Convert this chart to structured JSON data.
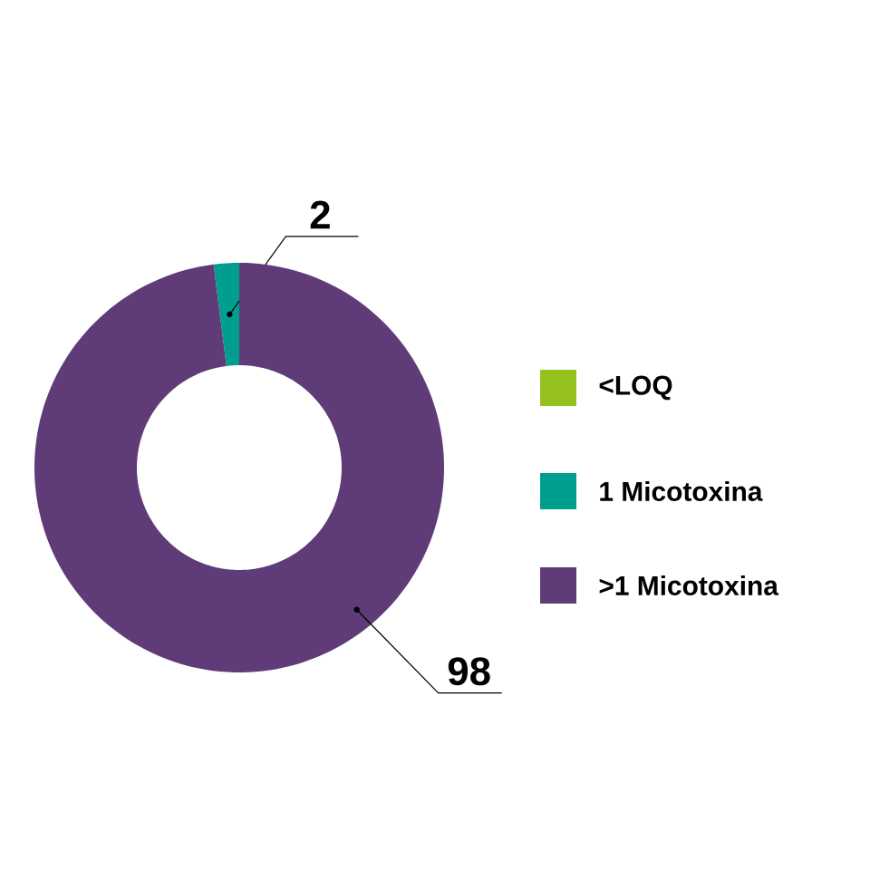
{
  "chart_data": {
    "type": "donut",
    "categories": [
      "<LOQ",
      "1 Micotoxina",
      ">1 Micotoxina"
    ],
    "values": [
      0,
      2,
      98
    ],
    "colors": [
      "#95c11f",
      "#009e8e",
      "#5f3b78"
    ],
    "value_labels": [
      null,
      "2",
      "98"
    ],
    "legend": "right"
  }
}
